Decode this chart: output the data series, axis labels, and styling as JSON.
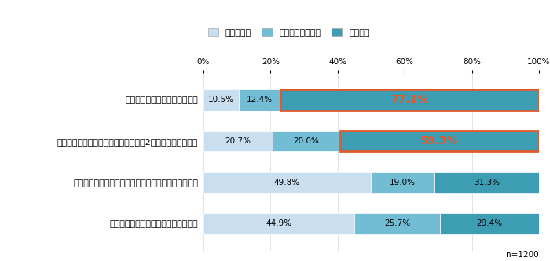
{
  "legend_labels": [
    "知っている",
    "聞いたことはある",
    "知らない"
  ],
  "colors": [
    "#c9dff0",
    "#72bcd4",
    "#3d9db3"
  ],
  "categories": [
    "「甘酒」は夏の季語であること",
    "甘酒には「酒粕甘酒」と「糀甘酒」の2種類が存在すること",
    "甘酒は「飲む点滴」と言われるほど栄養価が高いこと",
    "甘酒には発酵成分が含まれていること"
  ],
  "values": [
    [
      10.5,
      12.4,
      77.1
    ],
    [
      20.7,
      20.0,
      59.3
    ],
    [
      49.8,
      19.0,
      31.3
    ],
    [
      44.9,
      25.7,
      29.4
    ]
  ],
  "highlighted_rows": [
    0,
    1
  ],
  "highlight_color": "#e05a2b",
  "n_label": "n=1200",
  "background_color": "#ffffff",
  "bar_height": 0.5,
  "fontsize_title": 10.5,
  "fontsize_labels": 8,
  "fontsize_values": 7.5,
  "fontsize_legend": 8,
  "fontsize_n": 7.5
}
